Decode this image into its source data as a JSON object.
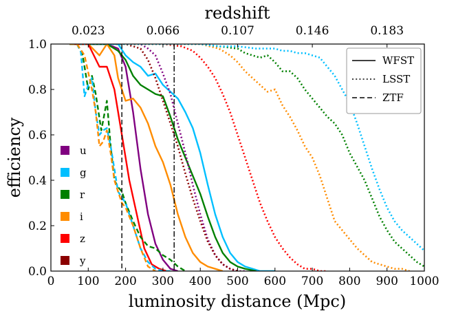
{
  "chart_data": {
    "type": "line",
    "xlabel": "luminosity distance (Mpc)",
    "ylabel": "efficiency",
    "top_axis_label": "redshift",
    "xlim": [
      0,
      1000
    ],
    "ylim": [
      0,
      1.0
    ],
    "x_ticks": [
      0,
      100,
      200,
      300,
      400,
      500,
      600,
      700,
      800,
      900,
      1000
    ],
    "y_ticks": [
      0.0,
      0.2,
      0.4,
      0.6,
      0.8,
      1.0
    ],
    "top_ticks": [
      {
        "x": 100,
        "label": "0.023"
      },
      {
        "x": 300,
        "label": "0.066"
      },
      {
        "x": 500,
        "label": "0.107"
      },
      {
        "x": 700,
        "label": "0.146"
      },
      {
        "x": 900,
        "label": "0.183"
      }
    ],
    "vlines": [
      {
        "x": 190,
        "style": "dashed"
      },
      {
        "x": 330,
        "style": "dashdot"
      }
    ],
    "style_legend": {
      "position": "top-right",
      "entries": [
        {
          "label": "WFST",
          "style": "solid"
        },
        {
          "label": "LSST",
          "style": "dotted"
        },
        {
          "label": "ZTF",
          "style": "dashed"
        }
      ]
    },
    "color_legend": {
      "position": "lower-left",
      "entries": [
        {
          "label": "u",
          "color": "#800080"
        },
        {
          "label": "g",
          "color": "#00bfff"
        },
        {
          "label": "r",
          "color": "#008000"
        },
        {
          "label": "i",
          "color": "#ff8c00"
        },
        {
          "label": "z",
          "color": "#ff0000"
        },
        {
          "label": "y",
          "color": "#8b0000"
        }
      ]
    },
    "series": [
      {
        "survey": "WFST",
        "band": "u",
        "color": "#800080",
        "style": "solid",
        "x": [
          50,
          100,
          150,
          180,
          200,
          220,
          240,
          260,
          280,
          300,
          320,
          340
        ],
        "y": [
          1.0,
          1.0,
          1.0,
          0.98,
          0.9,
          0.7,
          0.45,
          0.25,
          0.12,
          0.05,
          0.01,
          0.0
        ]
      },
      {
        "survey": "WFST",
        "band": "g",
        "color": "#00bfff",
        "style": "solid",
        "x": [
          50,
          100,
          150,
          180,
          200,
          220,
          240,
          260,
          280,
          300,
          320,
          340,
          360,
          380,
          400,
          420,
          440,
          460,
          480,
          500,
          520,
          540,
          560,
          600
        ],
        "y": [
          1.0,
          1.0,
          1.0,
          1.0,
          0.95,
          0.92,
          0.9,
          0.86,
          0.87,
          0.82,
          0.79,
          0.76,
          0.7,
          0.63,
          0.52,
          0.38,
          0.25,
          0.15,
          0.08,
          0.04,
          0.02,
          0.01,
          0.0,
          0.0
        ]
      },
      {
        "survey": "WFST",
        "band": "r",
        "color": "#008000",
        "style": "solid",
        "x": [
          50,
          100,
          150,
          180,
          200,
          220,
          240,
          260,
          280,
          300,
          320,
          340,
          360,
          380,
          400,
          420,
          440,
          460,
          480,
          500,
          520,
          550
        ],
        "y": [
          1.0,
          1.0,
          1.0,
          0.97,
          0.93,
          0.86,
          0.82,
          0.8,
          0.78,
          0.77,
          0.68,
          0.58,
          0.5,
          0.42,
          0.34,
          0.24,
          0.15,
          0.08,
          0.04,
          0.02,
          0.01,
          0.0
        ]
      },
      {
        "survey": "WFST",
        "band": "i",
        "color": "#ff8c00",
        "style": "solid",
        "x": [
          50,
          100,
          130,
          150,
          170,
          180,
          200,
          220,
          240,
          260,
          280,
          300,
          320,
          340,
          360,
          380,
          400,
          420,
          440,
          460
        ],
        "y": [
          1.0,
          1.0,
          0.95,
          1.0,
          0.95,
          0.85,
          0.75,
          0.76,
          0.72,
          0.65,
          0.55,
          0.48,
          0.38,
          0.25,
          0.15,
          0.08,
          0.04,
          0.02,
          0.01,
          0.0
        ]
      },
      {
        "survey": "WFST",
        "band": "z",
        "color": "#ff0000",
        "style": "solid",
        "x": [
          50,
          100,
          130,
          150,
          170,
          190,
          210,
          230,
          250,
          270,
          290,
          310
        ],
        "y": [
          1.0,
          1.0,
          0.9,
          0.9,
          0.8,
          0.6,
          0.4,
          0.25,
          0.1,
          0.03,
          0.01,
          0.0
        ]
      },
      {
        "survey": "LSST",
        "band": "u",
        "color": "#800080",
        "style": "dotted",
        "x": [
          50,
          150,
          200,
          240,
          260,
          280,
          300,
          320,
          340,
          360,
          380,
          400,
          420,
          440,
          460,
          480,
          500,
          520
        ],
        "y": [
          1.0,
          1.0,
          1.0,
          1.0,
          0.98,
          0.95,
          0.87,
          0.78,
          0.65,
          0.52,
          0.38,
          0.25,
          0.14,
          0.07,
          0.03,
          0.01,
          0.0,
          0.0
        ]
      },
      {
        "survey": "LSST",
        "band": "y",
        "color": "#8b0000",
        "style": "dotted",
        "x": [
          50,
          150,
          200,
          240,
          260,
          280,
          300,
          320,
          340,
          360,
          380,
          400,
          420,
          440,
          460,
          480,
          500
        ],
        "y": [
          1.0,
          1.0,
          1.0,
          0.98,
          0.93,
          0.85,
          0.75,
          0.65,
          0.55,
          0.43,
          0.32,
          0.22,
          0.13,
          0.07,
          0.03,
          0.01,
          0.0
        ]
      },
      {
        "survey": "LSST",
        "band": "z",
        "color": "#ff0000",
        "style": "dotted",
        "x": [
          50,
          200,
          300,
          350,
          380,
          400,
          420,
          440,
          460,
          480,
          500,
          520,
          540,
          560,
          580,
          600,
          620,
          640,
          660,
          680,
          700,
          720,
          740
        ],
        "y": [
          1.0,
          1.0,
          1.0,
          0.99,
          0.97,
          0.94,
          0.9,
          0.85,
          0.78,
          0.7,
          0.6,
          0.5,
          0.4,
          0.3,
          0.22,
          0.15,
          0.1,
          0.06,
          0.03,
          0.01,
          0.01,
          0.0,
          0.0
        ]
      },
      {
        "survey": "LSST",
        "band": "i",
        "color": "#ff8c00",
        "style": "dotted",
        "x": [
          50,
          300,
          400,
          450,
          480,
          500,
          520,
          540,
          560,
          580,
          600,
          620,
          640,
          660,
          680,
          700,
          720,
          740,
          760,
          780,
          800,
          820,
          840,
          860,
          880,
          900,
          920,
          940,
          960
        ],
        "y": [
          1.0,
          1.0,
          1.0,
          0.98,
          0.95,
          0.92,
          0.88,
          0.85,
          0.82,
          0.79,
          0.8,
          0.73,
          0.68,
          0.62,
          0.55,
          0.5,
          0.42,
          0.32,
          0.22,
          0.18,
          0.14,
          0.1,
          0.07,
          0.04,
          0.03,
          0.02,
          0.01,
          0.01,
          0.0
        ]
      },
      {
        "survey": "LSST",
        "band": "r",
        "color": "#008000",
        "style": "dotted",
        "x": [
          50,
          300,
          400,
          450,
          500,
          520,
          540,
          560,
          580,
          600,
          620,
          640,
          660,
          680,
          700,
          720,
          740,
          760,
          780,
          800,
          820,
          840,
          860,
          880,
          900,
          920,
          940,
          960,
          980,
          1000
        ],
        "y": [
          1.0,
          1.0,
          1.0,
          0.99,
          0.98,
          0.96,
          0.95,
          0.94,
          0.95,
          0.92,
          0.88,
          0.88,
          0.85,
          0.8,
          0.76,
          0.72,
          0.68,
          0.65,
          0.6,
          0.52,
          0.46,
          0.4,
          0.32,
          0.24,
          0.18,
          0.13,
          0.1,
          0.07,
          0.04,
          0.02
        ]
      },
      {
        "survey": "LSST",
        "band": "g",
        "color": "#00bfff",
        "style": "dotted",
        "x": [
          50,
          300,
          400,
          450,
          500,
          550,
          600,
          620,
          640,
          660,
          680,
          700,
          720,
          740,
          760,
          780,
          800,
          820,
          840,
          860,
          880,
          900,
          920,
          940,
          960,
          980,
          1000
        ],
        "y": [
          1.0,
          1.0,
          1.0,
          0.99,
          0.99,
          0.98,
          0.98,
          0.97,
          0.97,
          0.96,
          0.96,
          0.95,
          0.94,
          0.9,
          0.86,
          0.8,
          0.74,
          0.65,
          0.55,
          0.45,
          0.36,
          0.28,
          0.22,
          0.18,
          0.15,
          0.12,
          0.09
        ]
      },
      {
        "survey": "ZTF",
        "band": "r",
        "color": "#008000",
        "style": "dashed",
        "x": [
          50,
          70,
          85,
          100,
          110,
          120,
          135,
          150,
          160,
          170,
          180,
          190,
          200,
          220,
          240,
          260,
          280,
          300,
          320,
          340,
          360
        ],
        "y": [
          1.0,
          1.0,
          0.95,
          0.8,
          0.86,
          0.78,
          0.62,
          0.75,
          0.55,
          0.4,
          0.37,
          0.35,
          0.3,
          0.22,
          0.15,
          0.11,
          0.1,
          0.07,
          0.05,
          0.02,
          0.0
        ]
      },
      {
        "survey": "ZTF",
        "band": "g",
        "color": "#00bfff",
        "style": "dashed",
        "x": [
          50,
          70,
          80,
          90,
          100,
          110,
          120,
          130,
          140,
          150,
          160,
          170,
          180,
          200,
          220,
          240,
          260,
          280,
          300,
          320
        ],
        "y": [
          1.0,
          1.0,
          0.97,
          0.77,
          0.82,
          0.85,
          0.7,
          0.6,
          0.62,
          0.63,
          0.55,
          0.45,
          0.35,
          0.3,
          0.2,
          0.1,
          0.04,
          0.01,
          0.0,
          0.0
        ]
      },
      {
        "survey": "ZTF",
        "band": "i",
        "color": "#ff8c00",
        "style": "dashed",
        "x": [
          50,
          70,
          90,
          110,
          120,
          130,
          140,
          150,
          160,
          170,
          180,
          190,
          200,
          220,
          240,
          260,
          280
        ],
        "y": [
          1.0,
          1.0,
          0.95,
          0.8,
          0.7,
          0.55,
          0.57,
          0.62,
          0.52,
          0.4,
          0.35,
          0.3,
          0.28,
          0.2,
          0.1,
          0.02,
          0.0
        ]
      }
    ]
  }
}
